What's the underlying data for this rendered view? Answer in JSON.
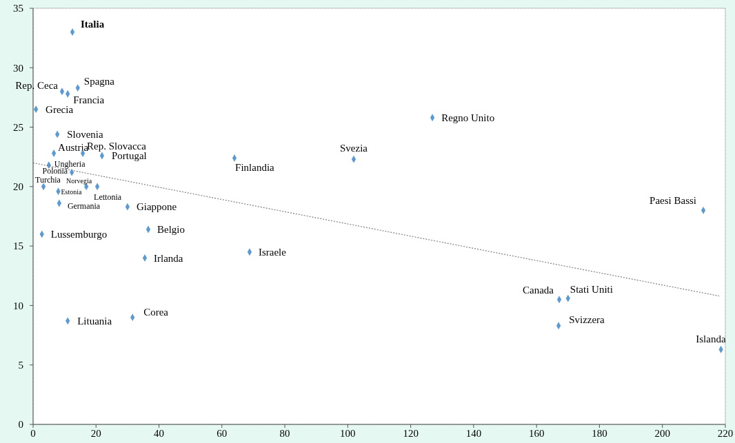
{
  "chart_data": {
    "type": "scatter",
    "marker": "diamond",
    "grid": false,
    "legend": false,
    "xlim": [
      0,
      220
    ],
    "xticks": [
      0,
      20,
      40,
      60,
      80,
      100,
      120,
      140,
      160,
      180,
      200,
      220
    ],
    "ylim": [
      0,
      35
    ],
    "yticks": [
      0,
      5,
      10,
      15,
      20,
      25,
      30,
      35
    ],
    "series": [
      {
        "name": "Italia",
        "color": "#5b9bd5",
        "x": [
          12.5
        ],
        "values": [
          33.0
        ]
      },
      {
        "name": "Rep. Ceca",
        "color": "#5b9bd5",
        "x": [
          9.2
        ],
        "values": [
          28.0
        ]
      },
      {
        "name": "Spagna",
        "color": "#5b9bd5",
        "x": [
          14.2
        ],
        "values": [
          28.3
        ]
      },
      {
        "name": "Francia",
        "color": "#5b9bd5",
        "x": [
          11.0
        ],
        "values": [
          27.8
        ]
      },
      {
        "name": "Grecia",
        "color": "#5b9bd5",
        "x": [
          0.9
        ],
        "values": [
          26.5
        ]
      },
      {
        "name": "Slovenia",
        "color": "#5b9bd5",
        "x": [
          7.7
        ],
        "values": [
          24.4
        ]
      },
      {
        "name": "Austria",
        "color": "#5b9bd5",
        "x": [
          6.6
        ],
        "values": [
          22.8
        ]
      },
      {
        "name": "Rep. Slovacca",
        "color": "#5b9bd5",
        "x": [
          15.8
        ],
        "values": [
          22.8
        ]
      },
      {
        "name": "Portugal",
        "color": "#5b9bd5",
        "x": [
          21.9
        ],
        "values": [
          22.6
        ]
      },
      {
        "name": "Ungheria",
        "color": "#5b9bd5",
        "x": [
          5.0
        ],
        "values": [
          21.8
        ]
      },
      {
        "name": "Norvegia",
        "color": "#5b9bd5",
        "x": [
          16.9
        ],
        "values": [
          20.0
        ]
      },
      {
        "name": "Turchia",
        "color": "#5b9bd5",
        "x": [
          3.3
        ],
        "values": [
          20.0
        ]
      },
      {
        "name": "Estonia",
        "color": "#5b9bd5",
        "x": [
          8.0
        ],
        "values": [
          19.6
        ]
      },
      {
        "name": "Lettonia",
        "color": "#5b9bd5",
        "x": [
          20.4
        ],
        "values": [
          20.0
        ]
      },
      {
        "name": "Polonia",
        "color": "#5b9bd5",
        "x": [
          12.3
        ],
        "values": [
          21.2
        ]
      },
      {
        "name": "Germania",
        "color": "#5b9bd5",
        "x": [
          8.3
        ],
        "values": [
          18.6
        ]
      },
      {
        "name": "Lussemburgo",
        "color": "#5b9bd5",
        "x": [
          2.8
        ],
        "values": [
          16.0
        ]
      },
      {
        "name": "Giappone",
        "color": "#5b9bd5",
        "x": [
          30.0
        ],
        "values": [
          18.3
        ]
      },
      {
        "name": "Belgio",
        "color": "#5b9bd5",
        "x": [
          36.6
        ],
        "values": [
          16.4
        ]
      },
      {
        "name": "Irlanda",
        "color": "#5b9bd5",
        "x": [
          35.5
        ],
        "values": [
          14.0
        ]
      },
      {
        "name": "Israele",
        "color": "#5b9bd5",
        "x": [
          68.8
        ],
        "values": [
          14.5
        ]
      },
      {
        "name": "Lituania",
        "color": "#5b9bd5",
        "x": [
          11.0
        ],
        "values": [
          8.7
        ]
      },
      {
        "name": "Corea",
        "color": "#5b9bd5",
        "x": [
          31.6
        ],
        "values": [
          9.0
        ]
      },
      {
        "name": "Finlandia",
        "color": "#5b9bd5",
        "x": [
          64.0
        ],
        "values": [
          22.4
        ]
      },
      {
        "name": "Svezia",
        "color": "#5b9bd5",
        "x": [
          101.9
        ],
        "values": [
          22.3
        ]
      },
      {
        "name": "Regno Unito",
        "color": "#5b9bd5",
        "x": [
          126.9
        ],
        "values": [
          25.8
        ]
      },
      {
        "name": "Paesi Bassi",
        "color": "#5b9bd5",
        "x": [
          213.0
        ],
        "values": [
          18.0
        ]
      },
      {
        "name": "Canada",
        "color": "#5b9bd5",
        "x": [
          167.2
        ],
        "values": [
          10.5
        ]
      },
      {
        "name": "Stati Uniti",
        "color": "#5b9bd5",
        "x": [
          170.0
        ],
        "values": [
          10.6
        ]
      },
      {
        "name": "Svizzera",
        "color": "#5b9bd5",
        "x": [
          167.0
        ],
        "values": [
          8.3
        ]
      },
      {
        "name": "Islanda",
        "color": "#5b9bd5",
        "x": [
          218.6
        ],
        "values": [
          6.3
        ]
      },
      {
        "type": "line",
        "color": "#7f7f7f",
        "line_style": "dotted",
        "marker": "none",
        "x": [
          0,
          218
        ],
        "values": [
          22.0,
          10.8
        ]
      }
    ]
  }
}
